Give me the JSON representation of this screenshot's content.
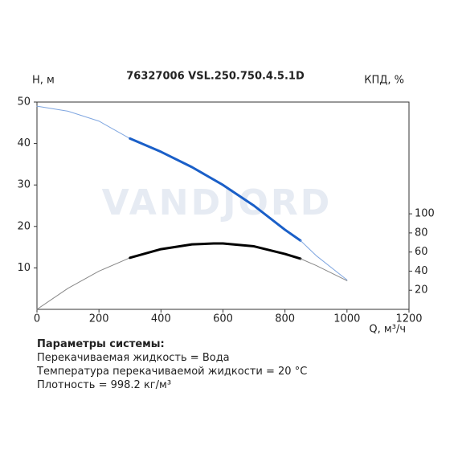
{
  "chart_data": {
    "type": "line",
    "title": "76327006 VSL.250.750.4.5.1D",
    "ylabel": "H, м",
    "y2label": "КПД, %",
    "xlabel": "Q, м³/ч",
    "watermark": "VANDJORD",
    "xlim": [
      0,
      1200
    ],
    "xticks": [
      0,
      200,
      400,
      600,
      800,
      1000,
      1200
    ],
    "ylim": [
      0,
      50
    ],
    "yticks": [
      10,
      20,
      30,
      40,
      50
    ],
    "y2lim": [
      0,
      217
    ],
    "y2ticks": [
      20,
      40,
      60,
      80,
      100
    ],
    "grid": false,
    "series": [
      {
        "color": "#7fa6e0",
        "width": 1,
        "x": [
          0,
          100,
          200,
          300
        ],
        "values": [
          49,
          47.8,
          45.4,
          41.2
        ]
      },
      {
        "color": "#1a5fc8",
        "width": 3,
        "x": [
          300,
          400,
          500,
          600,
          700,
          800,
          850
        ],
        "values": [
          41.2,
          38,
          34.3,
          30,
          25,
          19.2,
          16.6
        ]
      },
      {
        "color": "#7fa6e0",
        "width": 1,
        "x": [
          850,
          900,
          1000
        ],
        "values": [
          16.6,
          13,
          7.1
        ]
      },
      {
        "color": "#888888",
        "width": 1,
        "axis": "y2",
        "x": [
          0,
          100,
          200,
          300
        ],
        "values": [
          0,
          22,
          40,
          54
        ]
      },
      {
        "color": "#000000",
        "width": 3,
        "axis": "y2",
        "x": [
          300,
          400,
          500,
          570,
          600,
          700,
          800,
          850
        ],
        "values": [
          54,
          63,
          68,
          69,
          69,
          66,
          58,
          53
        ]
      },
      {
        "color": "#888888",
        "width": 1,
        "axis": "y2",
        "x": [
          850,
          900,
          1000
        ],
        "values": [
          53,
          46,
          30
        ]
      }
    ]
  },
  "parameters": {
    "heading": "Параметры системы:",
    "lines": [
      "Перекачиваемая жидкость = Вода",
      "Температура перекачиваемой жидкости = 20 °C",
      "Плотность = 998.2 кг/м³"
    ]
  }
}
